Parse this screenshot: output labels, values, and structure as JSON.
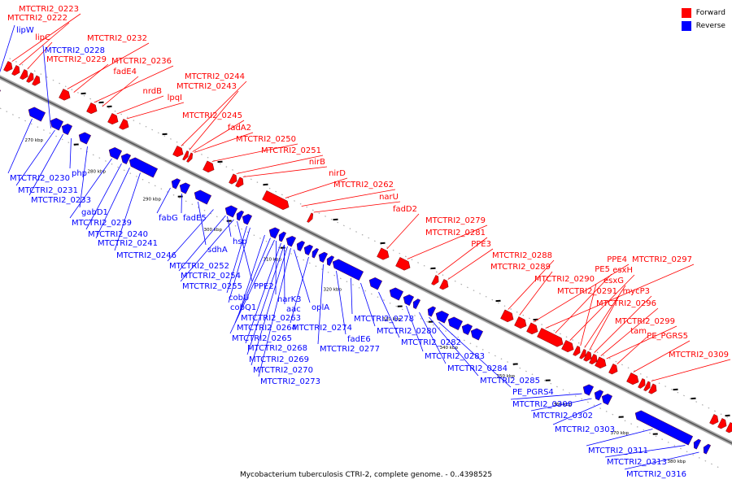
{
  "legend": [
    {
      "label": "Forward",
      "color": "#ff0000"
    },
    {
      "label": "Reverse",
      "color": "#0000ff"
    }
  ],
  "caption": "Mycobacterium tuberculosis CTRI-2, complete genome. - 0..4398525",
  "colors": {
    "forward": "#ff0000",
    "reverse": "#0000ff",
    "backbone": "#777777",
    "ticks": "#808080"
  },
  "scale_ticks": [
    "270 kbp",
    "280 kbp",
    "290 kbp",
    "300 kbp",
    "310 kbp",
    "320 kbp",
    "330 kbp",
    "340 kbp",
    "350 kbp",
    "360 kbp",
    "370 kbp",
    "380 kbp"
  ],
  "forward_labels": [
    "MTCTRI2_0223",
    "MTCTRI2_0222",
    "lipC",
    "MTCTRI2_0232",
    "MTCTRI2_0229",
    "MTCTRI2_0236",
    "fadE4",
    "nrdB",
    "lpqI",
    "MTCTRI2_0244",
    "MTCTRI2_0243",
    "MTCTRI2_0245",
    "fadA2",
    "MTCTRI2_0250",
    "MTCTRI2_0251",
    "nirB",
    "nirD",
    "MTCTRI2_0262",
    "narU",
    "fadD2",
    "MTCTRI2_0279",
    "MTCTRI2_0281",
    "PPE3",
    "MTCTRI2_0288",
    "MTCTRI2_0289",
    "PPE4",
    "MTCTRI2_0297",
    "PE5",
    "esxH",
    "MTCTRI2_0290",
    "esxG",
    "MTCTRI2_0291",
    "mycP3",
    "MTCTRI2_0296",
    "MTCTRI2_0299",
    "tam",
    "PE_PGRS5",
    "MTCTRI2_0309"
  ],
  "reverse_labels": [
    "lipW",
    "MTCTRI2_0228",
    "MTCTRI2_0230",
    "php",
    "MTCTRI2_0231",
    "MTCTRI2_0233",
    "gabD1",
    "MTCTRI2_0239",
    "MTCTRI2_0240",
    "MTCTRI2_0241",
    "fabG",
    "fadE5",
    "MTCTRI2_0246",
    "sdhA",
    "hsp",
    "MTCTRI2_0252",
    "MTCTRI2_0254",
    "MTCTRI2_0255",
    "PPE2",
    "cobU",
    "cobQ1",
    "narK3",
    "aac",
    "oplA",
    "MTCTRI2_0263",
    "MTCTRI2_0264",
    "MTCTRI2_0274",
    "MTCTRI2_0265",
    "MTCTRI2_0278",
    "MTCTRI2_0280",
    "fadE6",
    "MTCTRI2_0268",
    "MTCTRI2_0277",
    "MTCTRI2_0282",
    "MTCTRI2_0269",
    "MTCTRI2_0270",
    "MTCTRI2_0283",
    "MTCTRI2_0284",
    "MTCTRI2_0273",
    "MTCTRI2_0285",
    "PE_PGRS4",
    "MTCTRI2_0300",
    "MTCTRI2_0302",
    "MTCTRI2_0303",
    "MTCTRI2_0311",
    "MTCTRI2_0313",
    "MTCTRI2_0316"
  ]
}
